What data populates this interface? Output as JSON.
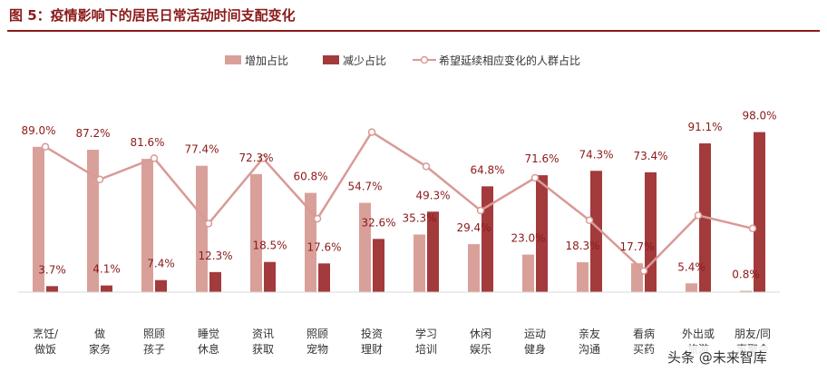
{
  "figure_title": "图 5：疫情影响下的居民日常活动时间支配变化",
  "watermark": "头条 @未来智库",
  "colors": {
    "increase": "#d9a09a",
    "decrease": "#a33a3c",
    "line": "#d99a96",
    "title": "#8b1a1a"
  },
  "chart_data": {
    "type": "bar",
    "title": "",
    "legend": [
      "增加占比",
      "减少占比",
      "希望延续相应变化的人群占比"
    ],
    "legend_position": "top",
    "categories": [
      [
        "烹饪/",
        "做饭"
      ],
      [
        "做",
        "家务"
      ],
      [
        "照顾",
        "孩子"
      ],
      [
        "睡觉",
        "休息"
      ],
      [
        "资讯",
        "获取"
      ],
      [
        "照顾",
        "宠物"
      ],
      [
        "投资",
        "理财"
      ],
      [
        "学习",
        "培训"
      ],
      [
        "休闲",
        "娱乐"
      ],
      [
        "运动",
        "健身"
      ],
      [
        "亲友",
        "沟通"
      ],
      [
        "看病",
        "买药"
      ],
      [
        "外出或",
        "旅游"
      ],
      [
        "朋友/同",
        "事聚会"
      ]
    ],
    "series": [
      {
        "name": "增加占比",
        "type": "bar",
        "values": [
          89.0,
          87.2,
          81.6,
          77.4,
          72.3,
          60.8,
          54.7,
          35.3,
          29.4,
          23.0,
          18.3,
          17.7,
          5.4,
          0.8
        ],
        "labels": [
          "89.0%",
          "87.2%",
          "81.6%",
          "77.4%",
          "72.3%",
          "60.8%",
          "54.7%",
          "35.3%",
          "29.4%",
          "23.0%",
          "18.3%",
          "17.7%",
          "5.4%",
          "0.8%"
        ]
      },
      {
        "name": "减少占比",
        "type": "bar",
        "values": [
          3.7,
          4.1,
          7.4,
          12.3,
          18.5,
          17.6,
          32.6,
          49.3,
          64.8,
          71.6,
          74.3,
          73.4,
          91.1,
          98.0
        ],
        "labels": [
          "3.7%",
          "4.1%",
          "7.4%",
          "12.3%",
          "18.5%",
          "17.6%",
          "32.6%",
          "49.3%",
          "64.8%",
          "71.6%",
          "74.3%",
          "73.4%",
          "91.1%",
          "98.0%"
        ]
      },
      {
        "name": "希望延续相应变化的人群占比",
        "type": "line",
        "values": [
          89.0,
          69.0,
          82.0,
          42.0,
          82.0,
          45.0,
          98.0,
          77.0,
          50.0,
          70.0,
          44.0,
          13.0,
          47.0,
          39.0
        ]
      }
    ],
    "ylim": [
      0,
      100
    ],
    "grid": false
  }
}
